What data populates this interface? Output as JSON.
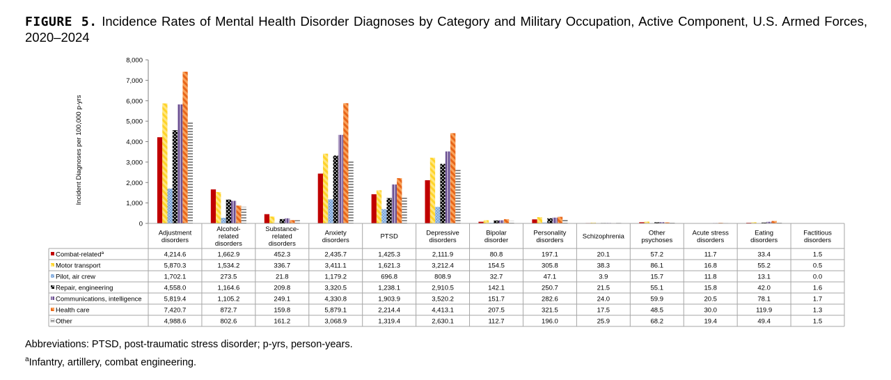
{
  "title": {
    "figure_label": "FIGURE 5.",
    "text": "Incidence Rates of Mental Health Disorder Diagnoses by Category and Military Occupation, Active Component, U.S. Armed Forces, 2020–2024"
  },
  "footnotes": {
    "abbreviations": "Abbreviations: PTSD, post-traumatic stress disorder; p-yrs, person-years.",
    "note_marker": "a",
    "note": "Infantry, artillery, combat engineering."
  },
  "chart_data": {
    "type": "bar",
    "ylabel": "Incident Diagnoses per 100,000 p-yrs",
    "xlabel": "",
    "ylim": [
      0,
      8000
    ],
    "yticks": [
      "0",
      "1,000",
      "2,000",
      "3,000",
      "4,000",
      "5,000",
      "6,000",
      "7,000",
      "8,000"
    ],
    "grid": false,
    "legend": "data-table-left",
    "categories": [
      [
        "Adjustment",
        "disorders"
      ],
      [
        "Alcohol-",
        "related",
        "disorders"
      ],
      [
        "Substance-",
        "related",
        "disorders"
      ],
      [
        "Anxiety",
        "disorders"
      ],
      [
        "PTSD"
      ],
      [
        "Depressive",
        "disorders"
      ],
      [
        "Bipolar",
        "disorder"
      ],
      [
        "Personality",
        "disorders"
      ],
      [
        "Schizophrenia"
      ],
      [
        "Other",
        "psychoses"
      ],
      [
        "Acute stress",
        "disorders"
      ],
      [
        "Eating",
        "disorders"
      ],
      [
        "Factitious",
        "disorders"
      ]
    ],
    "series": [
      {
        "name": "Combat-related",
        "marker": "a",
        "color": "#c00000",
        "pattern": "solid",
        "values": [
          4214.6,
          1662.9,
          452.3,
          2435.7,
          1425.3,
          2111.9,
          80.8,
          197.1,
          20.1,
          57.2,
          11.7,
          33.4,
          1.5
        ],
        "labels": [
          "4,214.6",
          "1,662.9",
          "452.3",
          "2,435.7",
          "1,425.3",
          "2,111.9",
          "80.8",
          "197.1",
          "20.1",
          "57.2",
          "11.7",
          "33.4",
          "1.5"
        ]
      },
      {
        "name": "Motor transport",
        "color": "#ffd42a",
        "pattern": "diag-stripe",
        "values": [
          5870.3,
          1534.2,
          336.7,
          3411.1,
          1621.3,
          3212.4,
          154.5,
          305.8,
          38.3,
          86.1,
          16.8,
          55.2,
          0.5
        ],
        "labels": [
          "5,870.3",
          "1,534.2",
          "336.7",
          "3,411.1",
          "1,621.3",
          "3,212.4",
          "154.5",
          "305.8",
          "38.3",
          "86.1",
          "16.8",
          "55.2",
          "0.5"
        ]
      },
      {
        "name": "Pilot, air crew",
        "color": "#8eb4e3",
        "pattern": "dots",
        "values": [
          1702.1,
          273.5,
          21.8,
          1179.2,
          696.8,
          808.9,
          32.7,
          47.1,
          3.9,
          15.7,
          11.8,
          13.1,
          0.0
        ],
        "labels": [
          "1,702.1",
          "273.5",
          "21.8",
          "1,179.2",
          "696.8",
          "808.9",
          "32.7",
          "47.1",
          "3.9",
          "15.7",
          "11.8",
          "13.1",
          "0.0"
        ]
      },
      {
        "name": "Repair, engineering",
        "color": "#000000",
        "pattern": "white-dots",
        "values": [
          4558.0,
          1164.6,
          209.8,
          3320.5,
          1238.1,
          2910.5,
          142.1,
          250.7,
          21.5,
          55.1,
          15.8,
          42.0,
          1.6
        ],
        "labels": [
          "4,558.0",
          "1,164.6",
          "209.8",
          "3,320.5",
          "1,238.1",
          "2,910.5",
          "142.1",
          "250.7",
          "21.5",
          "55.1",
          "15.8",
          "42.0",
          "1.6"
        ]
      },
      {
        "name": "Communications, intelligence",
        "color": "#8064a2",
        "pattern": "vert-stripe",
        "values": [
          5819.4,
          1105.2,
          249.1,
          4330.8,
          1903.9,
          3520.2,
          151.7,
          282.6,
          24.0,
          59.9,
          20.5,
          78.1,
          1.7
        ],
        "labels": [
          "5,819.4",
          "1,105.2",
          "249.1",
          "4,330.8",
          "1,903.9",
          "3,520.2",
          "151.7",
          "282.6",
          "24.0",
          "59.9",
          "20.5",
          "78.1",
          "1.7"
        ]
      },
      {
        "name": "Health care",
        "color": "#f0782d",
        "pattern": "diag-stripe",
        "values": [
          7420.7,
          872.7,
          159.8,
          5879.1,
          2214.4,
          4413.1,
          207.5,
          321.5,
          17.5,
          48.5,
          30.0,
          119.9,
          1.3
        ],
        "labels": [
          "7,420.7",
          "872.7",
          "159.8",
          "5,879.1",
          "2,214.4",
          "4,413.1",
          "207.5",
          "321.5",
          "17.5",
          "48.5",
          "30.0",
          "119.9",
          "1.3"
        ]
      },
      {
        "name": "Other",
        "color": "#8c8c8c",
        "pattern": "horiz-stripe",
        "values": [
          4988.6,
          802.6,
          161.2,
          3068.9,
          1319.4,
          2630.1,
          112.7,
          196.0,
          25.9,
          68.2,
          19.4,
          49.4,
          1.5
        ],
        "labels": [
          "4,988.6",
          "802.6",
          "161.2",
          "3,068.9",
          "1,319.4",
          "2,630.1",
          "112.7",
          "196.0",
          "25.9",
          "68.2",
          "19.4",
          "49.4",
          "1.5"
        ]
      }
    ]
  }
}
